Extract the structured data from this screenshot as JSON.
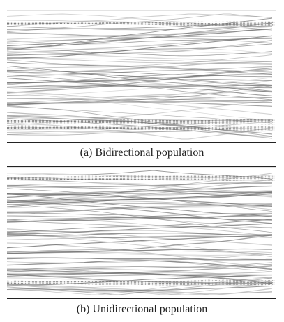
{
  "figure": {
    "panels": [
      {
        "id": "a",
        "caption": "(a) Bidirectional population",
        "line_color": "#6e6e6e",
        "border_color": "#222222"
      },
      {
        "id": "b",
        "caption": "(b) Unidirectional population",
        "line_color": "#6e6e6e",
        "border_color": "#222222"
      }
    ]
  }
}
